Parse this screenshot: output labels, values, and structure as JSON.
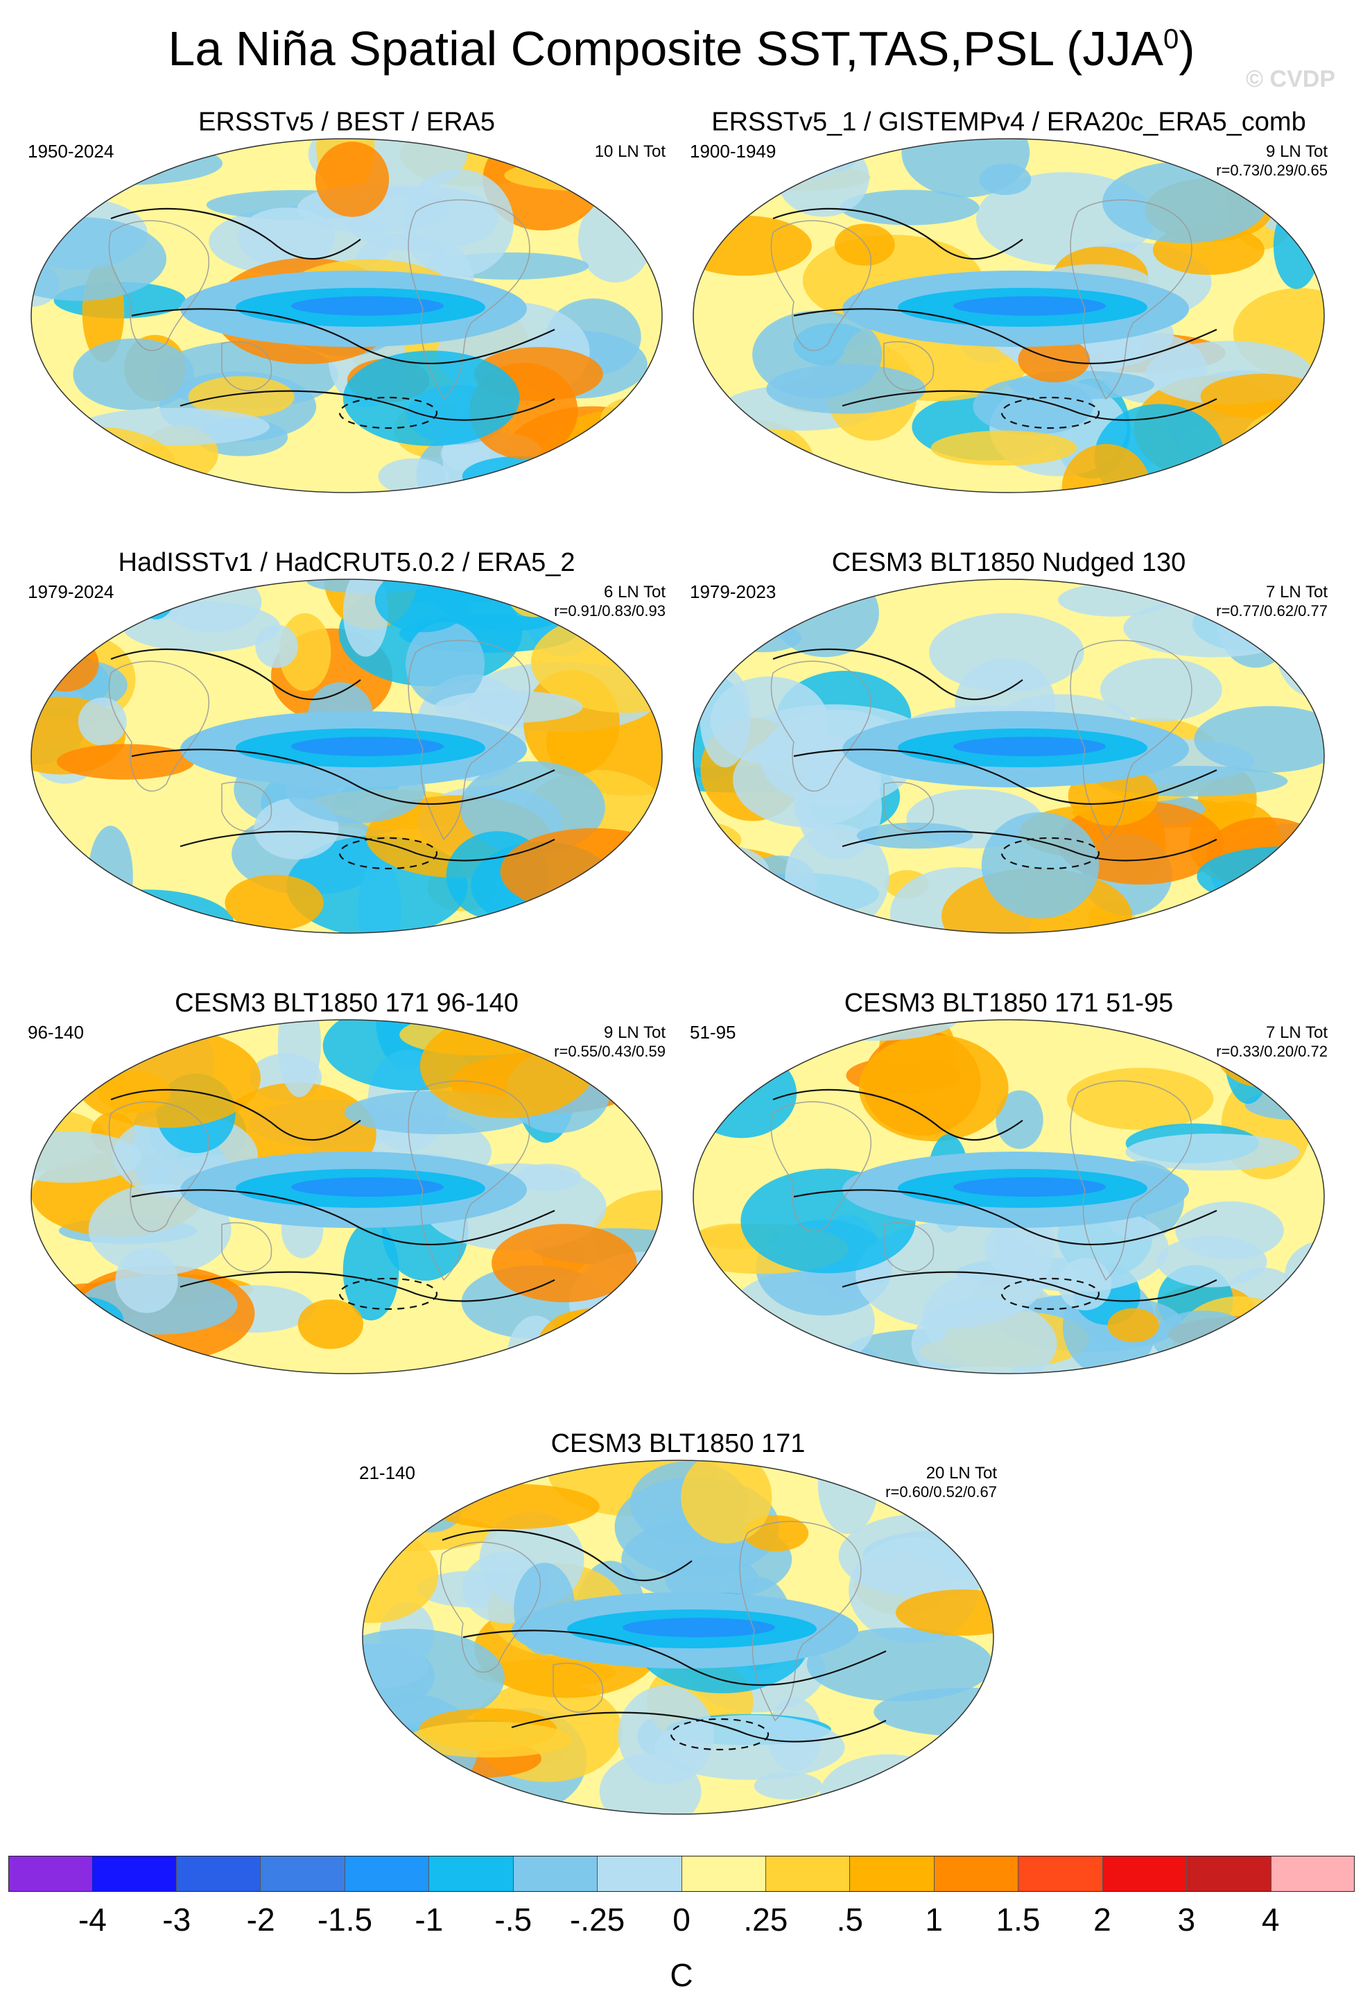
{
  "figure": {
    "title": "La Niña Spatial Composite SST,TAS,PSL (JJA",
    "title_superscript": "0",
    "title_close": ")",
    "watermark": "© CVDP"
  },
  "panels": [
    {
      "id": "p1",
      "title": "ERSSTv5 / BEST / ERA5",
      "years": "1950-2024",
      "count": "10 LN Tot",
      "stats": ""
    },
    {
      "id": "p2",
      "title": "ERSSTv5_1 / GISTEMPv4 / ERA20c_ERA5_comb",
      "years": "1900-1949",
      "count": "9 LN Tot",
      "stats": "r=0.73/0.29/0.65"
    },
    {
      "id": "p3",
      "title": "HadISSTv1 / HadCRUT5.0.2 / ERA5_2",
      "years": "1979-2024",
      "count": "6 LN Tot",
      "stats": "r=0.91/0.83/0.93"
    },
    {
      "id": "p4",
      "title": "CESM3 BLT1850 Nudged 130",
      "years": "1979-2023",
      "count": "7 LN Tot",
      "stats": "r=0.77/0.62/0.77"
    },
    {
      "id": "p5",
      "title": "CESM3 BLT1850 171 96-140",
      "years": "96-140",
      "count": "9 LN Tot",
      "stats": "r=0.55/0.43/0.59"
    },
    {
      "id": "p6",
      "title": "CESM3 BLT1850 171 51-95",
      "years": "51-95",
      "count": "7 LN Tot",
      "stats": "r=0.33/0.20/0.72"
    },
    {
      "id": "p7",
      "title": "CESM3 BLT1850 171",
      "years": "21-140",
      "count": "20 LN Tot",
      "stats": "r=0.60/0.52/0.67"
    }
  ],
  "colorbar": {
    "unit": "C",
    "labels": [
      "-4",
      "-3",
      "-2",
      "-1.5",
      "-1",
      "-.5",
      "-.25",
      "0",
      ".25",
      ".5",
      "1",
      "1.5",
      "2",
      "3",
      "4"
    ],
    "colors": [
      "#8a2be2",
      "#1515ff",
      "#2a5fe8",
      "#3a7ee6",
      "#1f96fa",
      "#14bcf0",
      "#7ec8ec",
      "#b5def2",
      "#fff79a",
      "#ffd235",
      "#ffb200",
      "#ff8a00",
      "#ff4a1a",
      "#f01010",
      "#c81e1e",
      "#ffb0b4"
    ]
  }
}
